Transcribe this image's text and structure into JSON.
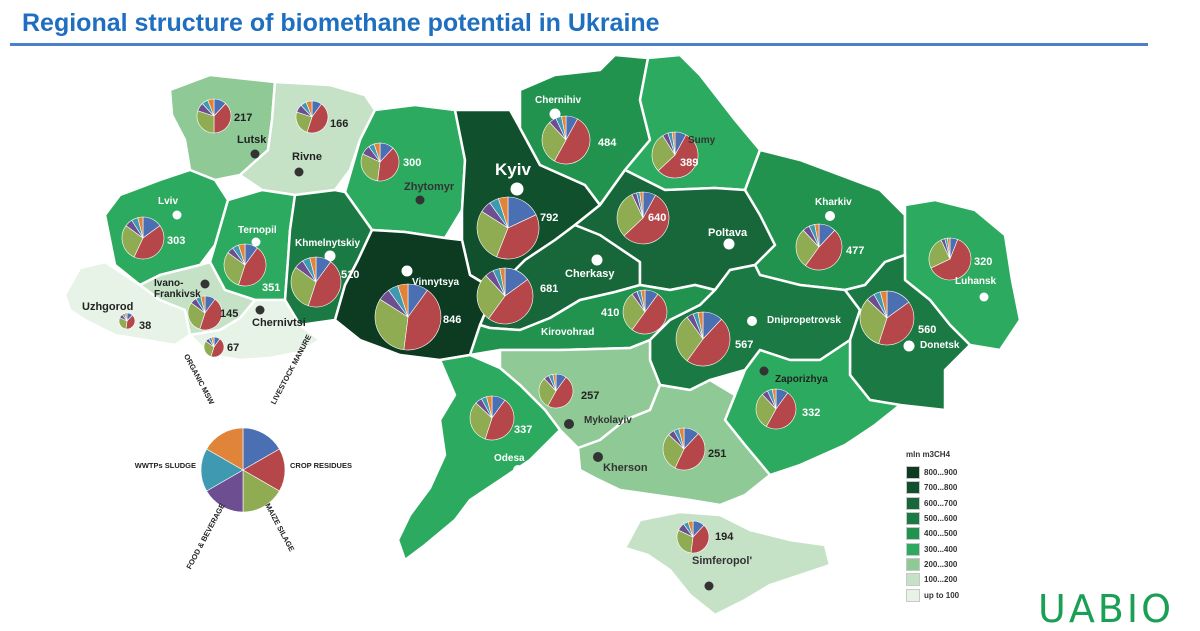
{
  "title": "Regional structure of biomethane potential in Ukraine",
  "logo": "UABIO",
  "legend": {
    "title": "mln m3CH4",
    "items": [
      {
        "label": "800...900",
        "color": "#0c3b22"
      },
      {
        "label": "700...800",
        "color": "#11502d"
      },
      {
        "label": "600...700",
        "color": "#17673a"
      },
      {
        "label": "500...600",
        "color": "#1b7a43"
      },
      {
        "label": "400...500",
        "color": "#22924f"
      },
      {
        "label": "300...400",
        "color": "#2caa5f"
      },
      {
        "label": "200...300",
        "color": "#8ec996"
      },
      {
        "label": "100...200",
        "color": "#c5e2c6"
      },
      {
        "label": "up to 100",
        "color": "#e6f3e6"
      }
    ]
  },
  "key_pie": {
    "labels": [
      "LIVESTOCK MANURE",
      "CROP RESIDUES",
      "MAIZE SILAGE",
      "FOOD & BEVERAGE",
      "WWTPs SLUDGE",
      "ORGANIC MSW"
    ],
    "colors": [
      "#4a6fb3",
      "#b5474a",
      "#8fac52",
      "#6d4e91",
      "#3f9ab1",
      "#e0843a"
    ]
  },
  "regions": [
    {
      "name": "Lutsk",
      "value": "217"
    },
    {
      "name": "Rivne",
      "value": "166"
    },
    {
      "name": "Zhytomyr",
      "value": "300"
    },
    {
      "name": "Chernihiv",
      "value": "484"
    },
    {
      "name": "Sumy",
      "value": "389"
    },
    {
      "name": "Kyiv",
      "value": "792"
    },
    {
      "name": "Lviv",
      "value": "303"
    },
    {
      "name": "Ternopil",
      "value": "351"
    },
    {
      "name": "Khmelnytskiy",
      "value": "510"
    },
    {
      "name": "Vinnytsya",
      "value": "846"
    },
    {
      "name": "Cherkasy",
      "value": "681"
    },
    {
      "name": "Poltava",
      "value": "640"
    },
    {
      "name": "Kharkiv",
      "value": "477"
    },
    {
      "name": "Luhansk",
      "value": "320"
    },
    {
      "name": "Uzhgorod",
      "value": "38"
    },
    {
      "name": "Ivano-Frankivsk",
      "value": "145"
    },
    {
      "name": "Chernivtsi",
      "value": "67"
    },
    {
      "name": "Kirovohrad",
      "value": "410"
    },
    {
      "name": "Dnipropetrovsk",
      "value": "567"
    },
    {
      "name": "Donetsk",
      "value": "560"
    },
    {
      "name": "Zaporizhya",
      "value": "332"
    },
    {
      "name": "Mykolayiv",
      "value": "257"
    },
    {
      "name": "Kherson",
      "value": "251"
    },
    {
      "name": "Odesa",
      "value": "337"
    },
    {
      "name": "Simferopol'",
      "value": "194"
    }
  ]
}
